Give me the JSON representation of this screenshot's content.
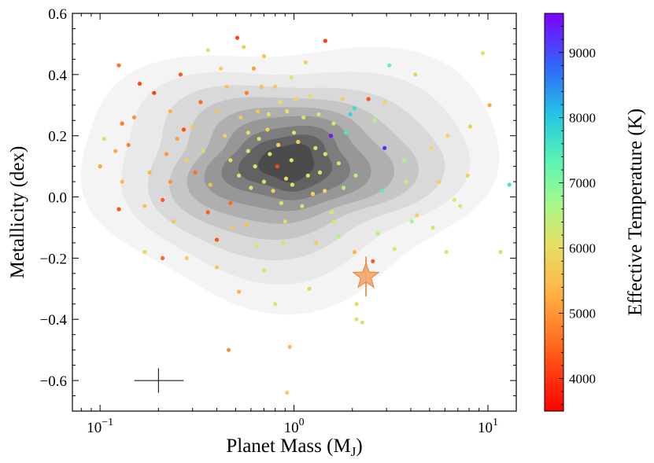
{
  "chart_data": {
    "type": "scatter",
    "x_scale": "log",
    "xlabel": "Planet Mass (M",
    "xlabel_sub": "J",
    "xlabel_close": ")",
    "ylabel": "Metallicity (dex)",
    "colorbar_label": "Effective Temperature (K)",
    "xlim": [
      0.072,
      14
    ],
    "ylim": [
      -0.7,
      0.6
    ],
    "x_ticks": [
      {
        "value": 0.1,
        "base": "10",
        "exp": "−1"
      },
      {
        "value": 1,
        "base": "10",
        "exp": "0"
      },
      {
        "value": 10,
        "base": "10",
        "exp": "1"
      }
    ],
    "y_ticks": [
      {
        "value": 0.6,
        "label": "0.6"
      },
      {
        "value": 0.4,
        "label": "0.4"
      },
      {
        "value": 0.2,
        "label": "0.2"
      },
      {
        "value": 0.0,
        "label": "0.0"
      },
      {
        "value": -0.2,
        "label": "−0.2"
      },
      {
        "value": -0.4,
        "label": "−0.4"
      },
      {
        "value": -0.6,
        "label": "−0.6"
      }
    ],
    "colorbar_range": [
      3500,
      9600
    ],
    "colorbar_ticks": [
      {
        "value": 4000,
        "label": "4000"
      },
      {
        "value": 5000,
        "label": "5000"
      },
      {
        "value": 6000,
        "label": "6000"
      },
      {
        "value": 7000,
        "label": "7000"
      },
      {
        "value": 8000,
        "label": "8000"
      },
      {
        "value": 9000,
        "label": "9000"
      }
    ],
    "density_levels": [
      {
        "center_x": 0.93,
        "center_y": 0.115,
        "rx_dex": 1.06,
        "ry": 0.42,
        "shade": "#f4f4f4"
      },
      {
        "center_x": 0.93,
        "center_y": 0.115,
        "rx_dex": 0.88,
        "ry": 0.34,
        "shade": "#e9e9e9"
      },
      {
        "center_x": 0.93,
        "center_y": 0.115,
        "rx_dex": 0.74,
        "ry": 0.28,
        "shade": "#d9d9d9"
      },
      {
        "center_x": 0.93,
        "center_y": 0.115,
        "rx_dex": 0.61,
        "ry": 0.23,
        "shade": "#c6c6c6"
      },
      {
        "center_x": 0.93,
        "center_y": 0.115,
        "rx_dex": 0.5,
        "ry": 0.19,
        "shade": "#afafaf"
      },
      {
        "center_x": 0.93,
        "center_y": 0.115,
        "rx_dex": 0.4,
        "ry": 0.155,
        "shade": "#979797"
      },
      {
        "center_x": 0.93,
        "center_y": 0.115,
        "rx_dex": 0.31,
        "ry": 0.12,
        "shade": "#7d7d7d"
      },
      {
        "center_x": 0.93,
        "center_y": 0.115,
        "rx_dex": 0.23,
        "ry": 0.09,
        "shade": "#626262"
      },
      {
        "center_x": 0.93,
        "center_y": 0.115,
        "rx_dex": 0.14,
        "ry": 0.06,
        "shade": "#4b4b4b"
      }
    ],
    "points": [
      [
        0.51,
        0.52,
        4200
      ],
      [
        1.45,
        0.51,
        4100
      ],
      [
        0.26,
        0.4,
        4300
      ],
      [
        0.16,
        0.37,
        4200
      ],
      [
        0.125,
        0.43,
        4600
      ],
      [
        0.19,
        0.34,
        4100
      ],
      [
        0.33,
        0.31,
        4500
      ],
      [
        0.15,
        0.26,
        5000
      ],
      [
        0.13,
        0.24,
        4700
      ],
      [
        0.105,
        0.19,
        6300
      ],
      [
        0.12,
        0.15,
        5200
      ],
      [
        0.14,
        0.17,
        4800
      ],
      [
        0.1,
        0.1,
        5200
      ],
      [
        0.13,
        0.05,
        5400
      ],
      [
        0.125,
        -0.04,
        4300
      ],
      [
        0.17,
        -0.03,
        5600
      ],
      [
        0.23,
        0.05,
        5000
      ],
      [
        0.21,
        -0.01,
        4400
      ],
      [
        0.25,
        0.19,
        5100
      ],
      [
        0.27,
        0.22,
        4200
      ],
      [
        0.31,
        0.08,
        4600
      ],
      [
        0.36,
        -0.05,
        4400
      ],
      [
        0.4,
        -0.14,
        4300
      ],
      [
        0.47,
        -0.02,
        4500
      ],
      [
        0.52,
        -0.31,
        5300
      ],
      [
        0.46,
        -0.5,
        4900
      ],
      [
        0.92,
        -0.64,
        5800
      ],
      [
        0.95,
        -0.49,
        5500
      ],
      [
        1.2,
        -0.3,
        5900
      ],
      [
        0.8,
        -0.35,
        6200
      ],
      [
        0.7,
        -0.24,
        6100
      ],
      [
        0.28,
        -0.2,
        5900
      ],
      [
        0.21,
        -0.2,
        4500
      ],
      [
        0.17,
        -0.18,
        5900
      ],
      [
        0.4,
        -0.23,
        5600
      ],
      [
        0.57,
        -0.09,
        5500
      ],
      [
        0.53,
        0.26,
        5700
      ],
      [
        0.57,
        0.34,
        4700
      ],
      [
        0.62,
        0.42,
        5100
      ],
      [
        0.7,
        0.46,
        5600
      ],
      [
        0.8,
        0.36,
        5700
      ],
      [
        0.85,
        0.31,
        6100
      ],
      [
        0.73,
        0.22,
        5900
      ],
      [
        0.66,
        0.19,
        6000
      ],
      [
        0.58,
        0.15,
        6200
      ],
      [
        0.63,
        0.1,
        6100
      ],
      [
        0.7,
        0.05,
        6300
      ],
      [
        0.78,
        0.02,
        5900
      ],
      [
        0.86,
        -0.02,
        6200
      ],
      [
        0.91,
        0.06,
        6000
      ],
      [
        0.97,
        0.12,
        6100
      ],
      [
        1.05,
        0.18,
        5800
      ],
      [
        1.12,
        0.26,
        6200
      ],
      [
        1.21,
        0.33,
        6000
      ],
      [
        1.29,
        0.16,
        6300
      ],
      [
        1.36,
        0.08,
        6200
      ],
      [
        1.44,
        0.02,
        6000
      ],
      [
        1.57,
        -0.05,
        6200
      ],
      [
        1.7,
        0.11,
        6100
      ],
      [
        1.85,
        0.21,
        7500
      ],
      [
        2.05,
        0.29,
        7700
      ],
      [
        2.42,
        0.32,
        4300
      ],
      [
        2.6,
        0.25,
        6500
      ],
      [
        2.93,
        0.16,
        9300
      ],
      [
        3.1,
        0.43,
        7300
      ],
      [
        4.22,
        0.4,
        5800
      ],
      [
        3.8,
        0.05,
        6400
      ],
      [
        4.05,
        -0.08,
        6700
      ],
      [
        5.1,
        0.16,
        6000
      ],
      [
        6.2,
        0.2,
        5900
      ],
      [
        7.85,
        0.07,
        5800
      ],
      [
        9.4,
        0.47,
        6200
      ],
      [
        10.2,
        0.3,
        5200
      ],
      [
        12.9,
        0.04,
        7600
      ],
      [
        11.6,
        -0.18,
        6300
      ],
      [
        7.2,
        -0.03,
        6200
      ],
      [
        6.1,
        -0.18,
        6300
      ],
      [
        5.2,
        -0.1,
        6100
      ],
      [
        4.3,
        -0.06,
        5900
      ],
      [
        2.7,
        -0.12,
        6600
      ],
      [
        2.05,
        -0.18,
        5400
      ],
      [
        2.55,
        -0.21,
        4400
      ],
      [
        2.1,
        -0.35,
        6000
      ],
      [
        2.1,
        -0.4,
        6100
      ],
      [
        2.25,
        -0.41,
        6300
      ],
      [
        3.3,
        -0.17,
        6200
      ],
      [
        1.8,
        0.03,
        6500
      ],
      [
        2.08,
        0.07,
        6500
      ],
      [
        1.45,
        0.14,
        6100
      ],
      [
        1.6,
        0.24,
        6200
      ],
      [
        1.15,
        0.44,
        5800
      ],
      [
        1.02,
        0.32,
        5900
      ],
      [
        0.92,
        0.28,
        6100
      ],
      [
        0.6,
        0.03,
        6200
      ],
      [
        0.52,
        0.07,
        6300
      ],
      [
        0.47,
        0.12,
        6000
      ],
      [
        0.44,
        0.2,
        5800
      ],
      [
        0.4,
        0.28,
        5600
      ],
      [
        0.37,
        0.04,
        5500
      ],
      [
        0.34,
        0.15,
        5900
      ],
      [
        0.3,
        0.23,
        5700
      ],
      [
        0.28,
        0.12,
        5800
      ],
      [
        0.82,
        0.1,
        4200
      ],
      [
        1.55,
        0.2,
        9400
      ],
      [
        1.95,
        0.27,
        7800
      ],
      [
        2.85,
        0.02,
        7400
      ],
      [
        0.24,
        -0.08,
        5600
      ],
      [
        1.3,
        -0.15,
        5700
      ],
      [
        0.64,
        -0.16,
        6200
      ],
      [
        0.74,
        0.27,
        6000
      ],
      [
        0.98,
        0.04,
        6100
      ],
      [
        1.1,
        -0.03,
        6300
      ],
      [
        1.78,
        0.32,
        5800
      ],
      [
        0.68,
        0.36,
        5500
      ],
      [
        0.42,
        0.42,
        5900
      ],
      [
        0.55,
        0.49,
        5700
      ],
      [
        0.36,
        0.48,
        6200
      ],
      [
        0.23,
        0.28,
        5300
      ],
      [
        0.22,
        0.14,
        5000
      ],
      [
        0.18,
        0.08,
        5400
      ],
      [
        0.48,
        -0.1,
        5700
      ],
      [
        0.9,
        -0.08,
        6000
      ],
      [
        1.6,
        -0.08,
        6100
      ],
      [
        3.7,
        0.12,
        6500
      ],
      [
        2.95,
        0.31,
        5900
      ],
      [
        5.6,
        0.05,
        5800
      ],
      [
        6.7,
        -0.01,
        6200
      ],
      [
        8.1,
        0.23,
        5800
      ],
      [
        0.83,
        0.17,
        5900
      ],
      [
        1.18,
        0.07,
        6000
      ],
      [
        0.65,
        0.28,
        5600
      ],
      [
        1.34,
        0.27,
        6300
      ],
      [
        1.0,
        0.21,
        6100
      ],
      [
        0.75,
        0.14,
        6200
      ],
      [
        1.25,
        0.01,
        5900
      ],
      [
        0.88,
        -0.15,
        6300
      ],
      [
        1.7,
        -0.13,
        6500
      ],
      [
        0.45,
        0.36,
        5600
      ],
      [
        0.58,
        0.21,
        6000
      ],
      [
        0.97,
        0.39,
        6100
      ]
    ],
    "highlight": {
      "x": 2.35,
      "y": -0.26,
      "yerr": 0.065,
      "marker": "star",
      "color": "#f5a468"
    },
    "error_cross": {
      "x": 0.2,
      "y": -0.6,
      "x_low": 0.15,
      "x_high": 0.27,
      "yerr": 0.04
    }
  }
}
